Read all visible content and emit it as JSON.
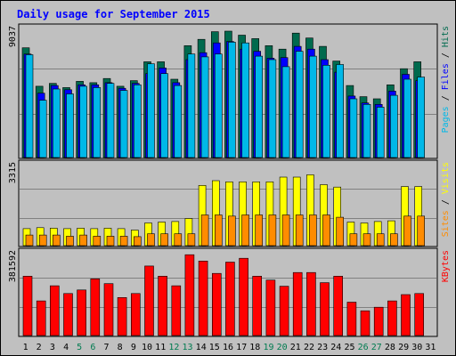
{
  "chart_data": {
    "type": "bar",
    "title": "Daily usage for September 2015",
    "colors": {
      "hits": "#006a4e",
      "files": "#0000ff",
      "pages": "#00b8e8",
      "visits": "#ffff00",
      "sites": "#ff8c00",
      "kbytes": "#ff0000",
      "title": "#0000ff",
      "weekend_label": "#007b50"
    },
    "days": [
      "1",
      "2",
      "3",
      "4",
      "5",
      "6",
      "7",
      "8",
      "9",
      "10",
      "11",
      "12",
      "13",
      "14",
      "15",
      "16",
      "17",
      "18",
      "19",
      "20",
      "21",
      "22",
      "23",
      "24",
      "25",
      "26",
      "27",
      "28",
      "29",
      "30",
      "31"
    ],
    "weekend_days": [
      "5",
      "6",
      "12",
      "13",
      "19",
      "20",
      "26",
      "27"
    ],
    "panels": [
      {
        "id": "hits-files-pages",
        "ylabel_parts": [
          {
            "text": "Pages",
            "series": "pages"
          },
          {
            "text": " / ",
            "series": null
          },
          {
            "text": "Files",
            "series": "files"
          },
          {
            "text": " / ",
            "series": null
          },
          {
            "text": "Hits",
            "series": "hits"
          }
        ],
        "max_label": "9037",
        "ymax": 9037,
        "series": [
          {
            "name": "Hits",
            "key": "hits",
            "values": [
              7850,
              5100,
              5300,
              5000,
              5450,
              5350,
              5650,
              5100,
              5500,
              6850,
              6850,
              5600,
              8000,
              8450,
              9000,
              9040,
              8750,
              8500,
              8000,
              7750,
              8900,
              8550,
              7950,
              6900,
              5150,
              4350,
              4200,
              5200,
              6350,
              6850,
              null
            ]
          },
          {
            "name": "Files",
            "key": "files",
            "values": [
              7400,
              4600,
              5150,
              4850,
              5200,
              5200,
              5350,
              4950,
              5300,
              6000,
              6400,
              5350,
              7000,
              7500,
              8200,
              8300,
              7750,
              7600,
              7100,
              7150,
              7950,
              7750,
              7000,
              6100,
              4400,
              3900,
              3800,
              4750,
              5950,
              5500,
              null
            ]
          },
          {
            "name": "Pages",
            "key": "pages",
            "values": [
              7350,
              4100,
              4900,
              4550,
              5100,
              5000,
              5300,
              4800,
              5200,
              6700,
              6000,
              5150,
              7400,
              7200,
              7400,
              8250,
              8200,
              7250,
              7000,
              6500,
              7600,
              7250,
              6600,
              6650,
              4200,
              3800,
              3600,
              4450,
              5600,
              5750,
              null
            ]
          }
        ]
      },
      {
        "id": "visits-sites",
        "ylabel_parts": [
          {
            "text": "Sites",
            "series": "sites"
          },
          {
            "text": " / ",
            "series": null
          },
          {
            "text": "Visits",
            "series": "visits"
          }
        ],
        "max_label": "3315",
        "ymax": 3315,
        "series": [
          {
            "name": "Visits",
            "key": "visits",
            "values": [
              720,
              760,
              740,
              720,
              740,
              720,
              740,
              720,
              660,
              960,
              1000,
              1020,
              1150,
              2550,
              2750,
              2700,
              2700,
              2700,
              2700,
              2900,
              2900,
              3000,
              2580,
              2480,
              1000,
              960,
              1020,
              1050,
              2500,
              2500,
              null
            ]
          },
          {
            "name": "Sites",
            "key": "sites",
            "values": [
              450,
              450,
              450,
              400,
              450,
              400,
              400,
              400,
              380,
              500,
              500,
              500,
              500,
              1300,
              1300,
              1250,
              1300,
              1300,
              1300,
              1300,
              1300,
              1300,
              1300,
              1200,
              500,
              500,
              500,
              500,
              1250,
              1250,
              null
            ]
          }
        ]
      },
      {
        "id": "kbytes",
        "ylabel_parts": [
          {
            "text": "KBytes",
            "series": "kbytes"
          }
        ],
        "max_label": "381592",
        "ymax": 381592,
        "series": [
          {
            "name": "KBytes",
            "key": "kbytes",
            "values": [
              283000,
              165000,
              237000,
              200000,
              217000,
              270000,
              247000,
              181000,
              200000,
              331000,
              283000,
              237000,
              385000,
              355000,
              296000,
              350000,
              368000,
              283000,
              264000,
              235000,
              300000,
              300000,
              252000,
              283000,
              159000,
              118000,
              135000,
              165000,
              195000,
              200000,
              null
            ]
          }
        ]
      }
    ]
  }
}
